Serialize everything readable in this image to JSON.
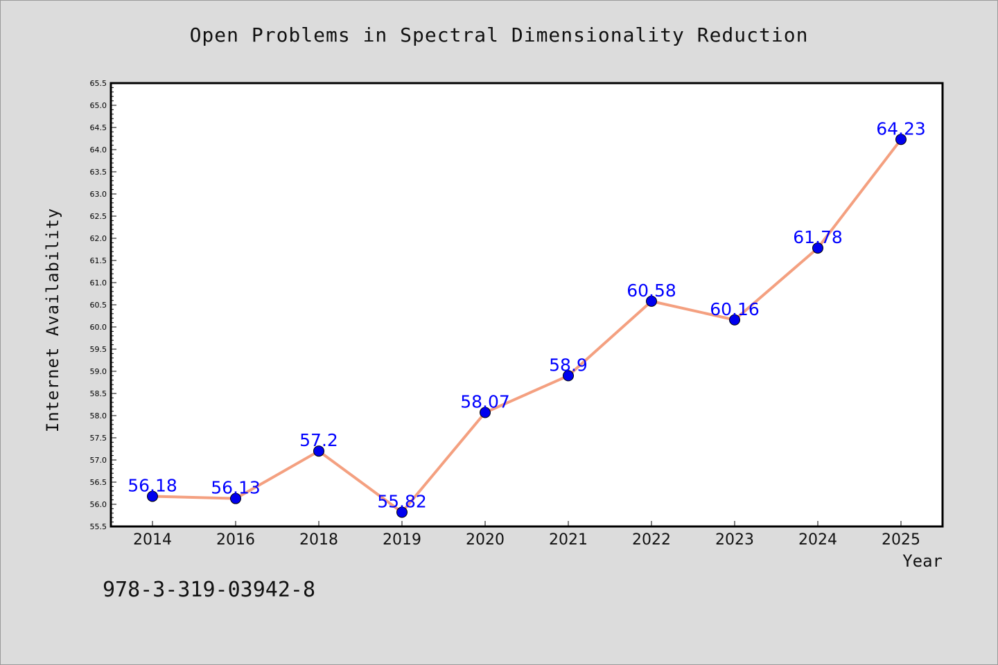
{
  "chart_data": {
    "type": "line",
    "title": "Open Problems in Spectral Dimensionality Reduction",
    "xlabel": "Year",
    "ylabel": "Internet Availability",
    "categories": [
      "2014",
      "2016",
      "2018",
      "2019",
      "2020",
      "2021",
      "2022",
      "2023",
      "2024",
      "2025"
    ],
    "series": [
      {
        "name": "",
        "values": [
          56.18,
          56.13,
          57.2,
          55.82,
          58.07,
          58.9,
          60.58,
          60.16,
          61.78,
          64.23
        ],
        "labels": [
          "56.18",
          "56.13",
          "57.2",
          "55.82",
          "58.07",
          "58.9",
          "60.58",
          "60.16",
          "61.78",
          "64.23"
        ]
      }
    ],
    "ylim": [
      55.5,
      65.5
    ],
    "ytick_step": 0.5,
    "grid": false,
    "legend": "none",
    "colors": {
      "line": "#f4a080",
      "marker": "#0000ee",
      "label": "#0000ff",
      "plot_background": "#ffffff",
      "figure_background": "#dcdcdc"
    }
  },
  "annotation": {
    "isbn": "978-3-319-03942-8"
  }
}
